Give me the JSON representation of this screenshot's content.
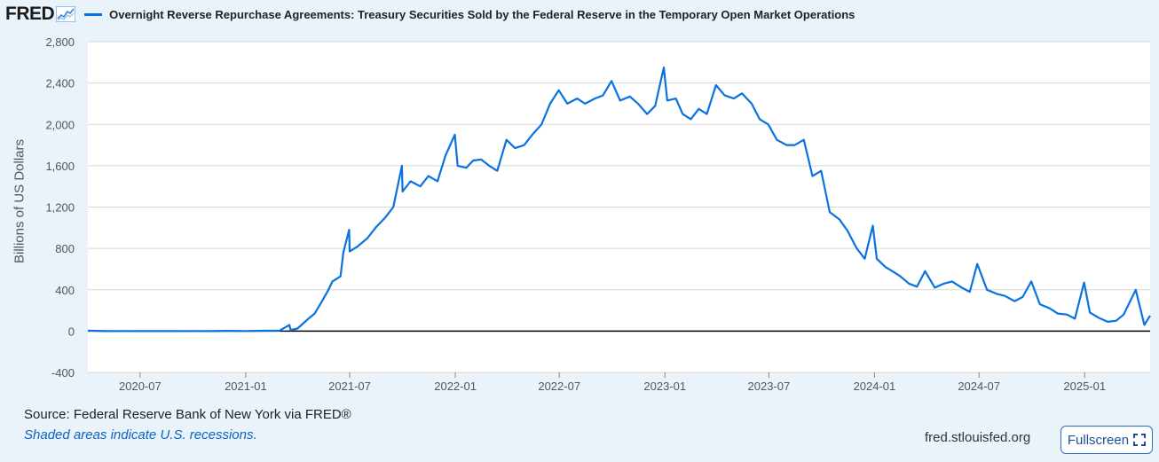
{
  "brand": {
    "name": "FRED"
  },
  "series_title": "Overnight Reverse Repurchase Agreements: Treasury Securities Sold by the Federal Reserve in the Temporary Open Market Operations",
  "colors": {
    "series": "#0a72e0",
    "background": "#eaf2fa",
    "plot_bg": "#ffffff",
    "zero_line": "#000000",
    "grid": "#d7d7d7"
  },
  "footer": {
    "source": "Source: Federal Reserve Bank of New York via FRED®",
    "recessions": "Shaded areas indicate U.S. recessions.",
    "site": "fred.stlouisfed.org",
    "fullscreen_label": "Fullscreen",
    "fullscreen_icon": "expand-icon"
  },
  "chart_data": {
    "type": "line",
    "ylabel": "Billions of US Dollars",
    "ylim": [
      -400,
      2800
    ],
    "yticks": [
      -400,
      0,
      400,
      800,
      1200,
      1600,
      2000,
      2400,
      2800
    ],
    "ytick_labels": [
      "-400",
      "0",
      "400",
      "800",
      "1,200",
      "1,600",
      "2,000",
      "2,400",
      "2,800"
    ],
    "xlim": [
      "2020-04-01",
      "2025-04-25"
    ],
    "xticks": [
      "2020-07-01",
      "2021-01-01",
      "2021-07-01",
      "2022-01-01",
      "2022-07-01",
      "2023-01-01",
      "2023-07-01",
      "2024-01-01",
      "2024-07-01",
      "2025-01-01"
    ],
    "xtick_labels": [
      "2020-07",
      "2021-01",
      "2021-07",
      "2022-01",
      "2022-07",
      "2023-01",
      "2023-07",
      "2024-01",
      "2024-07",
      "2025-01"
    ],
    "grid": "horizontal",
    "series": [
      {
        "values": [
          [
            "2020-04-01",
            5
          ],
          [
            "2020-05-01",
            0
          ],
          [
            "2020-06-01",
            1
          ],
          [
            "2020-07-01",
            0
          ],
          [
            "2020-08-01",
            0
          ],
          [
            "2020-09-01",
            0
          ],
          [
            "2020-10-01",
            1
          ],
          [
            "2020-11-01",
            0
          ],
          [
            "2020-12-01",
            2
          ],
          [
            "2021-01-01",
            1
          ],
          [
            "2021-02-01",
            3
          ],
          [
            "2021-03-01",
            5
          ],
          [
            "2021-03-18",
            60
          ],
          [
            "2021-03-20",
            10
          ],
          [
            "2021-04-01",
            25
          ],
          [
            "2021-04-20",
            120
          ],
          [
            "2021-05-01",
            170
          ],
          [
            "2021-05-15",
            300
          ],
          [
            "2021-05-25",
            400
          ],
          [
            "2021-06-01",
            480
          ],
          [
            "2021-06-15",
            530
          ],
          [
            "2021-06-20",
            760
          ],
          [
            "2021-06-30",
            980
          ],
          [
            "2021-07-01",
            770
          ],
          [
            "2021-07-15",
            820
          ],
          [
            "2021-08-01",
            900
          ],
          [
            "2021-08-15",
            1000
          ],
          [
            "2021-09-01",
            1100
          ],
          [
            "2021-09-15",
            1200
          ],
          [
            "2021-09-30",
            1600
          ],
          [
            "2021-10-01",
            1350
          ],
          [
            "2021-10-15",
            1450
          ],
          [
            "2021-11-01",
            1400
          ],
          [
            "2021-11-15",
            1500
          ],
          [
            "2021-12-01",
            1450
          ],
          [
            "2021-12-15",
            1700
          ],
          [
            "2021-12-31",
            1900
          ],
          [
            "2022-01-05",
            1600
          ],
          [
            "2022-01-20",
            1580
          ],
          [
            "2022-02-01",
            1650
          ],
          [
            "2022-02-15",
            1660
          ],
          [
            "2022-03-01",
            1600
          ],
          [
            "2022-03-15",
            1550
          ],
          [
            "2022-03-31",
            1850
          ],
          [
            "2022-04-15",
            1770
          ],
          [
            "2022-05-01",
            1800
          ],
          [
            "2022-05-15",
            1900
          ],
          [
            "2022-05-31",
            2000
          ],
          [
            "2022-06-15",
            2200
          ],
          [
            "2022-06-30",
            2330
          ],
          [
            "2022-07-15",
            2200
          ],
          [
            "2022-08-01",
            2250
          ],
          [
            "2022-08-15",
            2200
          ],
          [
            "2022-09-01",
            2250
          ],
          [
            "2022-09-15",
            2280
          ],
          [
            "2022-09-30",
            2420
          ],
          [
            "2022-10-15",
            2230
          ],
          [
            "2022-11-01",
            2270
          ],
          [
            "2022-11-15",
            2200
          ],
          [
            "2022-12-01",
            2100
          ],
          [
            "2022-12-15",
            2180
          ],
          [
            "2022-12-30",
            2550
          ],
          [
            "2023-01-05",
            2230
          ],
          [
            "2023-01-20",
            2250
          ],
          [
            "2023-02-01",
            2100
          ],
          [
            "2023-02-15",
            2050
          ],
          [
            "2023-03-01",
            2150
          ],
          [
            "2023-03-15",
            2100
          ],
          [
            "2023-03-31",
            2380
          ],
          [
            "2023-04-15",
            2280
          ],
          [
            "2023-05-01",
            2250
          ],
          [
            "2023-05-15",
            2300
          ],
          [
            "2023-06-01",
            2200
          ],
          [
            "2023-06-15",
            2050
          ],
          [
            "2023-06-30",
            2000
          ],
          [
            "2023-07-15",
            1850
          ],
          [
            "2023-08-01",
            1800
          ],
          [
            "2023-08-15",
            1800
          ],
          [
            "2023-08-31",
            1850
          ],
          [
            "2023-09-15",
            1500
          ],
          [
            "2023-09-30",
            1550
          ],
          [
            "2023-10-15",
            1150
          ],
          [
            "2023-11-01",
            1080
          ],
          [
            "2023-11-15",
            970
          ],
          [
            "2023-12-01",
            800
          ],
          [
            "2023-12-15",
            700
          ],
          [
            "2023-12-29",
            1020
          ],
          [
            "2024-01-05",
            700
          ],
          [
            "2024-01-20",
            620
          ],
          [
            "2024-02-01",
            580
          ],
          [
            "2024-02-15",
            530
          ],
          [
            "2024-03-01",
            460
          ],
          [
            "2024-03-15",
            430
          ],
          [
            "2024-03-29",
            580
          ],
          [
            "2024-04-15",
            420
          ],
          [
            "2024-05-01",
            460
          ],
          [
            "2024-05-15",
            480
          ],
          [
            "2024-06-01",
            420
          ],
          [
            "2024-06-15",
            380
          ],
          [
            "2024-06-28",
            650
          ],
          [
            "2024-07-15",
            400
          ],
          [
            "2024-08-01",
            360
          ],
          [
            "2024-08-15",
            340
          ],
          [
            "2024-09-01",
            290
          ],
          [
            "2024-09-15",
            330
          ],
          [
            "2024-09-30",
            480
          ],
          [
            "2024-10-15",
            260
          ],
          [
            "2024-11-01",
            220
          ],
          [
            "2024-11-15",
            170
          ],
          [
            "2024-12-01",
            160
          ],
          [
            "2024-12-15",
            120
          ],
          [
            "2024-12-31",
            470
          ],
          [
            "2025-01-10",
            180
          ],
          [
            "2025-01-25",
            130
          ],
          [
            "2025-02-10",
            90
          ],
          [
            "2025-02-25",
            100
          ],
          [
            "2025-03-10",
            160
          ],
          [
            "2025-03-31",
            400
          ],
          [
            "2025-04-15",
            60
          ],
          [
            "2025-04-25",
            150
          ]
        ]
      }
    ]
  }
}
